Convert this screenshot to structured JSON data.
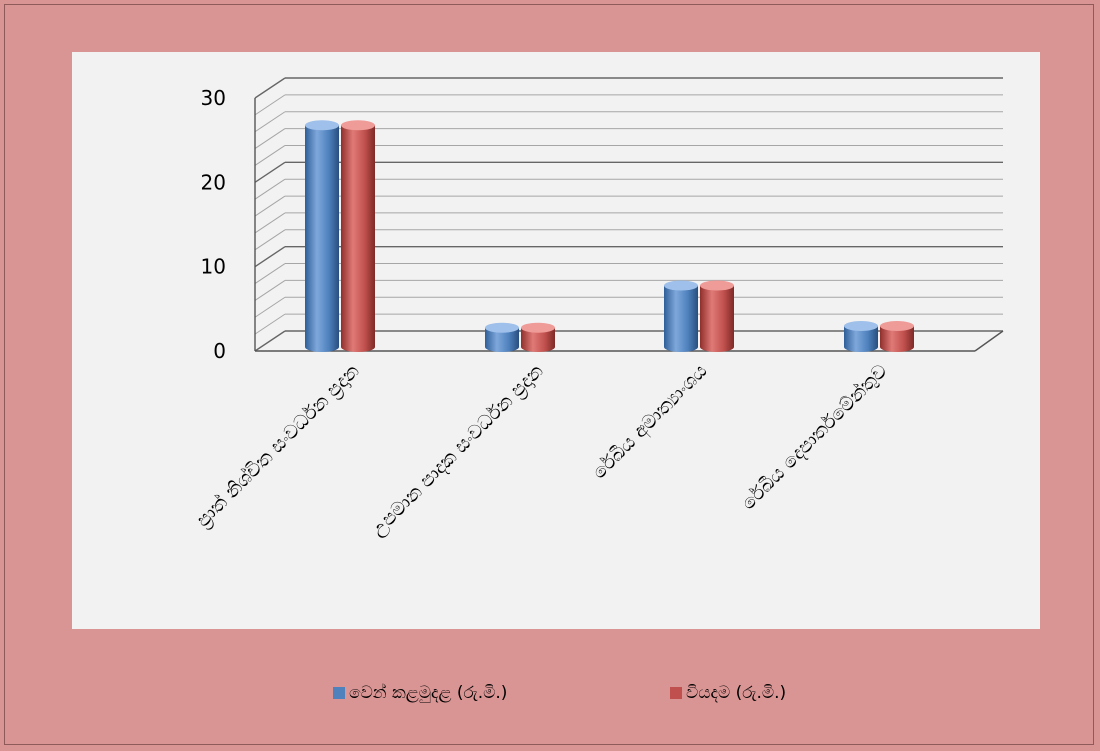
{
  "chart_data": {
    "type": "bar",
    "categories": [
      "ප්‍රාත් නිශ්චිත සංවර්ධන ප්‍රදාන",
      "උපමාන පාදක සංවර්ධන ප්‍රදාන",
      "රේඛීය අමාත්‍යාංශය",
      "රේඛීය දෙපාර්තමේන්තුව"
    ],
    "series": [
      {
        "name": "වෙන් කළමුදළ (රු.මි.)",
        "values": [
          27,
          3,
          8,
          3.2
        ],
        "color": "#4f81bd"
      },
      {
        "name": "වියදම (රු.මි.)",
        "values": [
          27,
          3,
          8,
          3.2
        ],
        "color": "#c0504d"
      }
    ],
    "yticks": [
      "0",
      "10",
      "20",
      "30"
    ],
    "ylim": [
      0,
      30
    ],
    "grid": true,
    "legend": "bottom",
    "title": "",
    "xlabel": "",
    "ylabel": ""
  }
}
